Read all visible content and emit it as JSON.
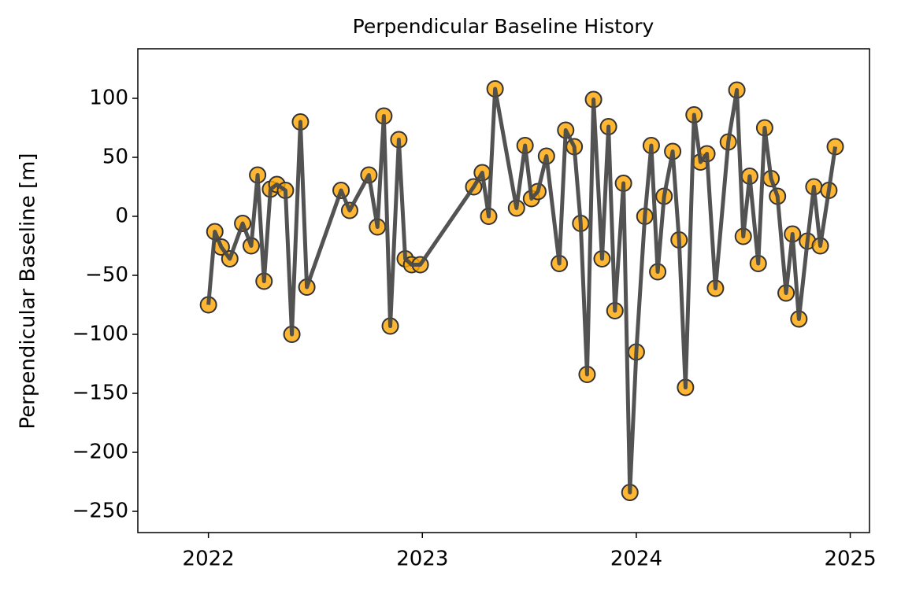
{
  "chart_data": {
    "type": "line",
    "title": "Perpendicular Baseline History",
    "ylabel": "Perpendicular Baseline [m]",
    "x": [
      2022.0,
      2022.03,
      2022.06,
      2022.1,
      2022.16,
      2022.2,
      2022.23,
      2022.26,
      2022.29,
      2022.32,
      2022.36,
      2022.39,
      2022.43,
      2022.46,
      2022.62,
      2022.66,
      2022.75,
      2022.79,
      2022.82,
      2022.85,
      2022.89,
      2022.92,
      2022.95,
      2022.99,
      2023.24,
      2023.28,
      2023.31,
      2023.34,
      2023.44,
      2023.48,
      2023.51,
      2023.54,
      2023.58,
      2023.64,
      2023.67,
      2023.71,
      2023.74,
      2023.77,
      2023.8,
      2023.84,
      2023.87,
      2023.9,
      2023.94,
      2023.97,
      2024.0,
      2024.04,
      2024.07,
      2024.1,
      2024.13,
      2024.17,
      2024.2,
      2024.23,
      2024.27,
      2024.3,
      2024.33,
      2024.37,
      2024.43,
      2024.47,
      2024.5,
      2024.53,
      2024.57,
      2024.6,
      2024.63,
      2024.66,
      2024.7,
      2024.73,
      2024.76,
      2024.8,
      2024.83,
      2024.86,
      2024.9,
      2024.93
    ],
    "values": [
      -75,
      -13,
      -26,
      -36,
      -6,
      -25,
      35,
      -55,
      23,
      27,
      22,
      -100,
      80,
      -60,
      22,
      5,
      35,
      -9,
      85,
      -93,
      65,
      -36,
      -41,
      -41,
      25,
      37,
      0,
      108,
      7,
      60,
      15,
      21,
      51,
      -40,
      73,
      59,
      -6,
      -134,
      99,
      -36,
      76,
      -80,
      28,
      -234,
      -115,
      0,
      60,
      -47,
      17,
      55,
      -20,
      -145,
      86,
      46,
      53,
      -61,
      63,
      107,
      -17,
      34,
      -40,
      75,
      32,
      17,
      -65,
      -15,
      -87,
      -21,
      25,
      -25,
      22,
      59
    ],
    "line_color": "#4a4a4a",
    "marker_color": "#ffa500",
    "xlim": [
      2021.67,
      2025.09
    ],
    "xticks": [
      2022,
      2023,
      2024,
      2025
    ],
    "ylim": [
      -268,
      142
    ],
    "yticks": [
      {
        "value": -250,
        "label": "−250"
      },
      {
        "value": -200,
        "label": "−200"
      },
      {
        "value": -150,
        "label": "−150"
      },
      {
        "value": -100,
        "label": "−100"
      },
      {
        "value": -50,
        "label": "−50"
      },
      0,
      50,
      100
    ],
    "grid": false
  }
}
